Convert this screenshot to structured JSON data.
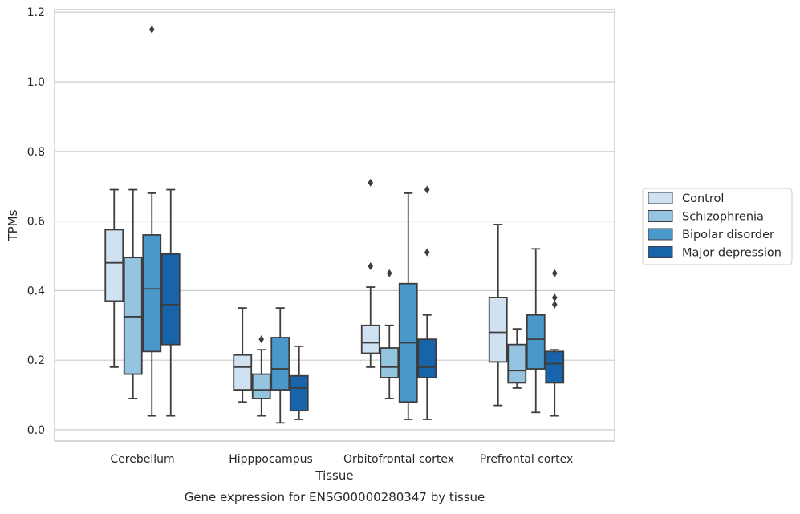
{
  "chart_data": {
    "type": "box",
    "xlabel": "Tissue",
    "ylabel": "TPMs",
    "caption": "Gene expression for ENSG00000280347 by tissue",
    "ylim": [
      -0.035,
      1.21
    ],
    "yticks": [
      0.0,
      0.2,
      0.4,
      0.6,
      0.8,
      1.0,
      1.2
    ],
    "yticklabels": [
      "0.0",
      "0.2",
      "0.4",
      "0.6",
      "0.8",
      "1.0",
      "1.2"
    ],
    "grid": "horizontal",
    "legend_position": "right",
    "categories": [
      "Cerebellum",
      "Hipppocampus",
      "Orbitofrontal cortex",
      "Prefrontal cortex"
    ],
    "series": [
      {
        "name": "Control",
        "color": "#d0e1f2",
        "boxes": [
          {
            "whislo": 0.18,
            "q1": 0.37,
            "med": 0.48,
            "q3": 0.575,
            "whishi": 0.69,
            "fliers": []
          },
          {
            "whislo": 0.08,
            "q1": 0.115,
            "med": 0.18,
            "q3": 0.215,
            "whishi": 0.35,
            "fliers": []
          },
          {
            "whislo": 0.18,
            "q1": 0.22,
            "med": 0.25,
            "q3": 0.3,
            "whishi": 0.41,
            "fliers": [
              0.47,
              0.71
            ]
          },
          {
            "whislo": 0.07,
            "q1": 0.195,
            "med": 0.28,
            "q3": 0.38,
            "whishi": 0.59,
            "fliers": []
          }
        ]
      },
      {
        "name": "Schizophrenia",
        "color": "#94c4df",
        "boxes": [
          {
            "whislo": 0.09,
            "q1": 0.16,
            "med": 0.325,
            "q3": 0.495,
            "whishi": 0.69,
            "fliers": []
          },
          {
            "whislo": 0.04,
            "q1": 0.09,
            "med": 0.115,
            "q3": 0.16,
            "whishi": 0.23,
            "fliers": [
              0.26
            ]
          },
          {
            "whislo": 0.09,
            "q1": 0.15,
            "med": 0.18,
            "q3": 0.235,
            "whishi": 0.3,
            "fliers": [
              0.45
            ]
          },
          {
            "whislo": 0.12,
            "q1": 0.135,
            "med": 0.17,
            "q3": 0.245,
            "whishi": 0.29,
            "fliers": []
          }
        ]
      },
      {
        "name": "Bipolar disorder",
        "color": "#4a98c9",
        "boxes": [
          {
            "whislo": 0.04,
            "q1": 0.225,
            "med": 0.405,
            "q3": 0.56,
            "whishi": 0.68,
            "fliers": [
              1.15
            ]
          },
          {
            "whislo": 0.02,
            "q1": 0.115,
            "med": 0.175,
            "q3": 0.265,
            "whishi": 0.35,
            "fliers": []
          },
          {
            "whislo": 0.03,
            "q1": 0.08,
            "med": 0.25,
            "q3": 0.42,
            "whishi": 0.68,
            "fliers": []
          },
          {
            "whislo": 0.05,
            "q1": 0.175,
            "med": 0.26,
            "q3": 0.33,
            "whishi": 0.52,
            "fliers": []
          }
        ]
      },
      {
        "name": "Major depression",
        "color": "#1764ab",
        "boxes": [
          {
            "whislo": 0.04,
            "q1": 0.245,
            "med": 0.36,
            "q3": 0.505,
            "whishi": 0.69,
            "fliers": []
          },
          {
            "whislo": 0.03,
            "q1": 0.055,
            "med": 0.12,
            "q3": 0.155,
            "whishi": 0.24,
            "fliers": []
          },
          {
            "whislo": 0.03,
            "q1": 0.15,
            "med": 0.18,
            "q3": 0.26,
            "whishi": 0.33,
            "fliers": [
              0.51,
              0.69
            ]
          },
          {
            "whislo": 0.04,
            "q1": 0.135,
            "med": 0.19,
            "q3": 0.225,
            "whishi": 0.23,
            "fliers": [
              0.36,
              0.38,
              0.45
            ]
          }
        ]
      }
    ]
  }
}
